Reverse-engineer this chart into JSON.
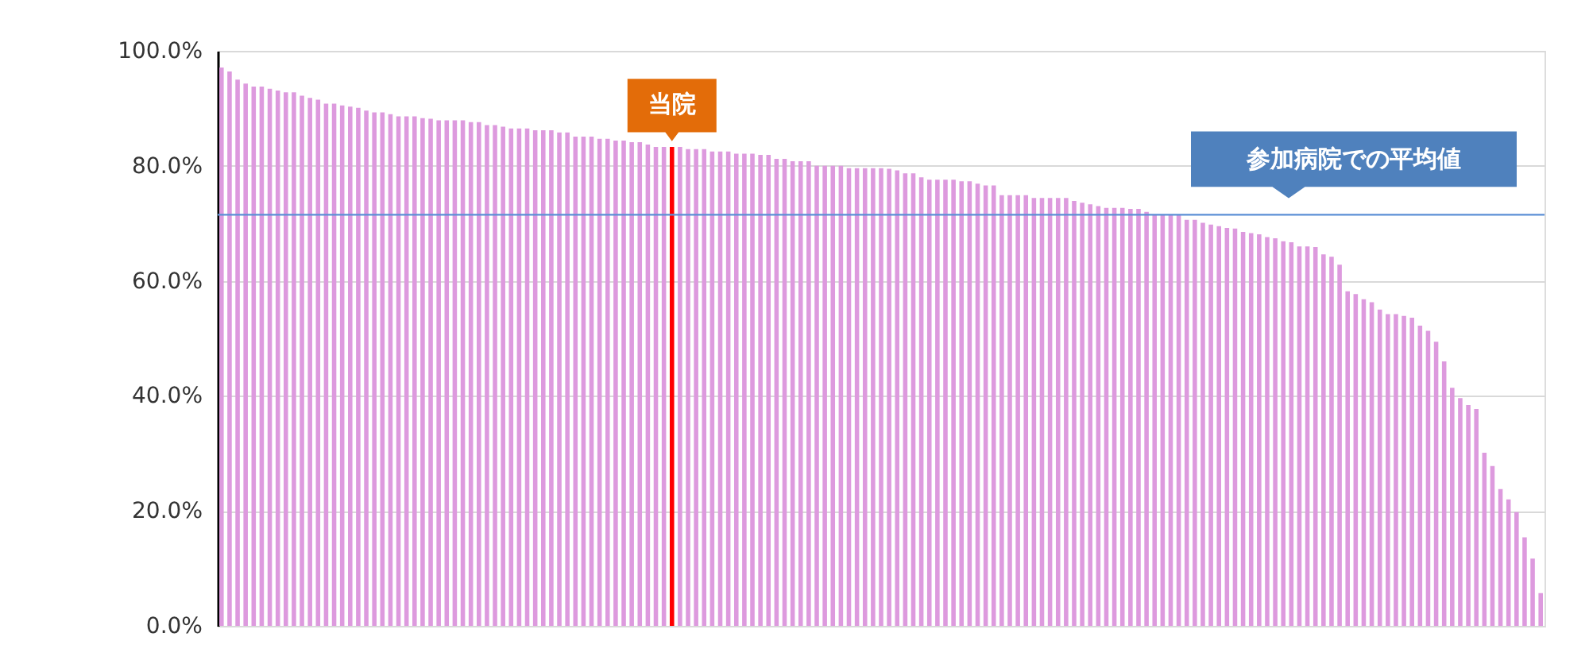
{
  "chart_data": {
    "type": "bar",
    "categories": [
      null,
      null,
      null,
      null,
      null,
      null,
      null,
      null,
      null,
      null,
      null,
      null,
      null,
      null,
      null,
      null,
      null,
      null,
      null,
      null,
      null,
      null,
      null,
      null,
      null,
      null,
      null,
      null,
      null,
      null,
      null,
      null,
      null,
      null,
      null,
      null,
      null,
      null,
      null,
      null,
      null,
      null,
      null,
      null,
      null,
      null,
      null,
      null,
      null,
      null,
      null,
      null,
      null,
      null,
      null,
      null,
      null,
      null,
      null,
      null,
      null,
      null,
      null,
      null,
      null,
      null,
      null,
      null,
      null,
      null,
      null,
      null,
      null,
      null,
      null,
      null,
      null,
      null,
      null,
      null,
      null,
      null,
      null,
      null,
      null,
      null,
      null,
      null,
      null,
      null,
      null,
      null,
      null,
      null,
      null,
      null,
      null,
      null,
      null,
      null,
      null,
      null,
      null,
      null,
      null,
      null,
      null,
      null,
      null,
      null,
      null,
      null,
      null,
      null,
      null,
      null,
      null,
      null,
      null,
      null,
      null,
      null,
      null,
      null,
      null,
      null,
      null,
      null,
      null,
      null,
      null,
      null,
      null,
      null,
      null,
      null,
      null,
      null,
      null,
      null,
      null,
      null,
      null,
      null,
      null,
      null,
      null,
      null,
      null,
      null,
      null,
      null,
      null,
      null,
      null,
      null,
      null,
      null,
      null,
      null,
      null,
      null,
      null,
      null,
      null
    ],
    "values": [
      97.1,
      96.4,
      95.0,
      94.3,
      93.8,
      93.8,
      93.4,
      93.1,
      92.8,
      92.8,
      92.2,
      91.8,
      91.5,
      90.8,
      90.8,
      90.5,
      90.3,
      90.1,
      89.6,
      89.3,
      89.3,
      89.0,
      88.6,
      88.6,
      88.6,
      88.3,
      88.2,
      87.9,
      87.9,
      87.9,
      87.9,
      87.6,
      87.6,
      87.1,
      87.1,
      86.8,
      86.5,
      86.5,
      86.5,
      86.2,
      86.2,
      86.2,
      85.8,
      85.8,
      85.1,
      85.1,
      85.1,
      84.7,
      84.7,
      84.4,
      84.4,
      84.1,
      84.1,
      83.7,
      83.3,
      83.3,
      83.3,
      83.3,
      82.9,
      82.9,
      82.9,
      82.5,
      82.5,
      82.5,
      82.1,
      82.1,
      82.1,
      81.9,
      81.9,
      81.2,
      81.2,
      80.8,
      80.8,
      80.8,
      80.0,
      80.0,
      80.0,
      80.0,
      79.6,
      79.6,
      79.6,
      79.6,
      79.6,
      79.5,
      79.2,
      78.7,
      78.7,
      78.0,
      77.6,
      77.6,
      77.6,
      77.6,
      77.3,
      77.3,
      76.9,
      76.6,
      76.6,
      74.9,
      74.9,
      74.9,
      74.9,
      74.4,
      74.4,
      74.4,
      74.4,
      74.4,
      73.9,
      73.6,
      73.3,
      73.0,
      72.7,
      72.7,
      72.7,
      72.5,
      72.5,
      72.0,
      71.5,
      71.5,
      71.5,
      71.4,
      70.6,
      70.6,
      70.1,
      69.8,
      69.5,
      69.2,
      69.1,
      68.5,
      68.3,
      68.1,
      67.6,
      67.4,
      66.9,
      66.7,
      66.0,
      66.0,
      65.9,
      64.6,
      64.2,
      62.8,
      58.2,
      57.7,
      56.8,
      56.3,
      55.0,
      54.2,
      54.2,
      53.9,
      53.6,
      52.2,
      51.3,
      49.4,
      46.0,
      41.4,
      39.6,
      38.4,
      37.7,
      30.1,
      27.8,
      23.8,
      22.0,
      19.8,
      15.4,
      11.7,
      5.7
    ],
    "colors": [
      "#dd9ade",
      "#dd9ade",
      "#dd9ade",
      "#dd9ade",
      "#dd9ade",
      "#dd9ade",
      "#dd9ade",
      "#dd9ade",
      "#dd9ade",
      "#dd9ade",
      "#dd9ade",
      "#dd9ade",
      "#dd9ade",
      "#dd9ade",
      "#dd9ade",
      "#dd9ade",
      "#dd9ade",
      "#dd9ade",
      "#dd9ade",
      "#dd9ade",
      "#dd9ade",
      "#dd9ade",
      "#dd9ade",
      "#dd9ade",
      "#dd9ade",
      "#dd9ade",
      "#dd9ade",
      "#dd9ade",
      "#dd9ade",
      "#dd9ade",
      "#dd9ade",
      "#dd9ade",
      "#dd9ade",
      "#dd9ade",
      "#dd9ade",
      "#dd9ade",
      "#dd9ade",
      "#dd9ade",
      "#dd9ade",
      "#dd9ade",
      "#dd9ade",
      "#dd9ade",
      "#dd9ade",
      "#dd9ade",
      "#dd9ade",
      "#dd9ade",
      "#dd9ade",
      "#dd9ade",
      "#dd9ade",
      "#dd9ade",
      "#dd9ade",
      "#dd9ade",
      "#dd9ade",
      "#dd9ade",
      "#dd9ade",
      "#dd9ade",
      "#ff0000",
      "#dd9ade",
      "#dd9ade",
      "#dd9ade",
      "#dd9ade",
      "#dd9ade",
      "#dd9ade",
      "#dd9ade",
      "#dd9ade",
      "#dd9ade",
      "#dd9ade",
      "#dd9ade",
      "#dd9ade",
      "#dd9ade",
      "#dd9ade",
      "#dd9ade",
      "#dd9ade",
      "#dd9ade",
      "#dd9ade",
      "#dd9ade",
      "#dd9ade",
      "#dd9ade",
      "#dd9ade",
      "#dd9ade",
      "#dd9ade",
      "#dd9ade",
      "#dd9ade",
      "#dd9ade",
      "#dd9ade",
      "#dd9ade",
      "#dd9ade",
      "#dd9ade",
      "#dd9ade",
      "#dd9ade",
      "#dd9ade",
      "#dd9ade",
      "#dd9ade",
      "#dd9ade",
      "#dd9ade",
      "#dd9ade",
      "#dd9ade",
      "#dd9ade",
      "#dd9ade",
      "#dd9ade",
      "#dd9ade",
      "#dd9ade",
      "#dd9ade",
      "#dd9ade",
      "#dd9ade",
      "#dd9ade",
      "#dd9ade",
      "#dd9ade",
      "#dd9ade",
      "#dd9ade",
      "#dd9ade",
      "#dd9ade",
      "#dd9ade",
      "#dd9ade",
      "#dd9ade",
      "#dd9ade",
      "#dd9ade",
      "#dd9ade",
      "#dd9ade",
      "#dd9ade",
      "#dd9ade",
      "#dd9ade",
      "#dd9ade",
      "#dd9ade",
      "#dd9ade",
      "#dd9ade",
      "#dd9ade",
      "#dd9ade",
      "#dd9ade",
      "#dd9ade",
      "#dd9ade",
      "#dd9ade",
      "#dd9ade",
      "#dd9ade",
      "#dd9ade",
      "#dd9ade",
      "#dd9ade",
      "#dd9ade",
      "#dd9ade",
      "#dd9ade",
      "#dd9ade",
      "#dd9ade",
      "#dd9ade",
      "#dd9ade",
      "#dd9ade",
      "#dd9ade",
      "#dd9ade",
      "#dd9ade",
      "#dd9ade",
      "#dd9ade",
      "#dd9ade",
      "#dd9ade",
      "#dd9ade",
      "#dd9ade",
      "#dd9ade",
      "#dd9ade",
      "#dd9ade",
      "#dd9ade",
      "#dd9ade",
      "#dd9ade",
      "#dd9ade",
      "#dd9ade",
      "#dd9ade",
      "#dd9ade",
      "#dd9ade"
    ],
    "ylim": [
      0,
      100
    ],
    "yticks": [
      {
        "value": 0,
        "label": "0.0%"
      },
      {
        "value": 20,
        "label": "20.0%"
      },
      {
        "value": 40,
        "label": "40.0%"
      },
      {
        "value": 60,
        "label": "60.0%"
      },
      {
        "value": 80,
        "label": "80.0%"
      },
      {
        "value": 100,
        "label": "100.0%"
      }
    ],
    "tick_labels": "y",
    "grid": "y",
    "ref_lines": [
      {
        "axis": "y",
        "value": 71.5,
        "label": "参加病院での平均値",
        "color": "#5b8fd6"
      }
    ],
    "annotations": [
      {
        "text": "当院",
        "y": 83.3
      }
    ]
  }
}
